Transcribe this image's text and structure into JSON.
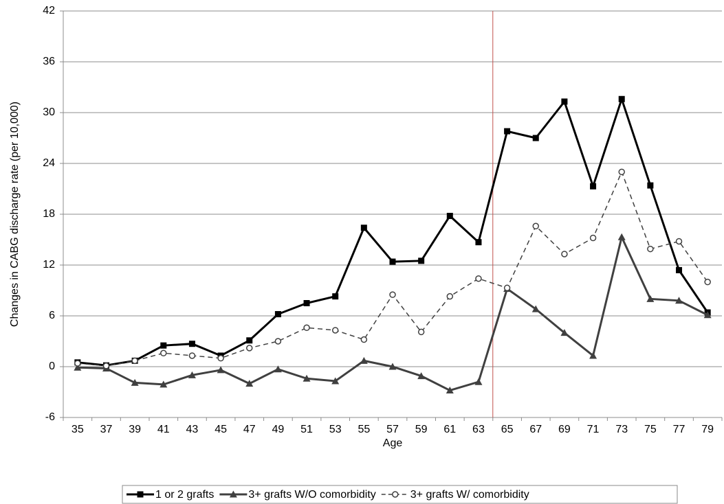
{
  "chart_data": {
    "type": "line",
    "y_label": "Changes in CABG discharge rate (per 10,000)",
    "x_label": "Age",
    "categories": [
      "35",
      "37",
      "39",
      "41",
      "43",
      "45",
      "47",
      "49",
      "51",
      "53",
      "55",
      "57",
      "59",
      "61",
      "63",
      "65",
      "67",
      "69",
      "71",
      "73",
      "75",
      "77",
      "79"
    ],
    "series": [
      {
        "name": "1 or 2 grafts",
        "color": "#000000",
        "marker": "square",
        "dashed": false,
        "values": [
          0.5,
          0.15,
          0.7,
          2.5,
          2.7,
          1.3,
          3.1,
          6.2,
          7.5,
          8.3,
          16.4,
          12.4,
          12.5,
          17.8,
          14.7,
          27.8,
          27.0,
          31.3,
          21.3,
          31.6,
          21.4,
          11.4,
          6.4
        ]
      },
      {
        "name": "3+ grafts W/O comorbidity",
        "color": "#404040",
        "marker": "triangle",
        "dashed": false,
        "values": [
          -0.1,
          -0.2,
          -1.9,
          -2.1,
          -1.0,
          -0.4,
          -2.0,
          -0.3,
          -1.4,
          -1.7,
          0.7,
          0.0,
          -1.1,
          -2.8,
          -1.8,
          9.2,
          6.8,
          4.0,
          1.3,
          15.3,
          8.0,
          7.8,
          6.1
        ]
      },
      {
        "name": "3+ grafts W/ comorbidity",
        "color": "#404040",
        "marker": "circle",
        "dashed": true,
        "values": [
          0.4,
          0.1,
          0.7,
          1.6,
          1.3,
          1.0,
          2.2,
          3.0,
          4.6,
          4.3,
          3.2,
          8.5,
          4.1,
          8.3,
          10.4,
          9.3,
          16.6,
          13.3,
          15.2,
          23.0,
          13.9,
          14.8,
          10.0
        ]
      }
    ],
    "ylim": [
      -6,
      42
    ],
    "yticks": [
      -6,
      0,
      6,
      12,
      18,
      24,
      30,
      36,
      42
    ],
    "grid": true,
    "vline": {
      "after_category": "63",
      "color": "#c0504d"
    },
    "legend": "bottom"
  }
}
